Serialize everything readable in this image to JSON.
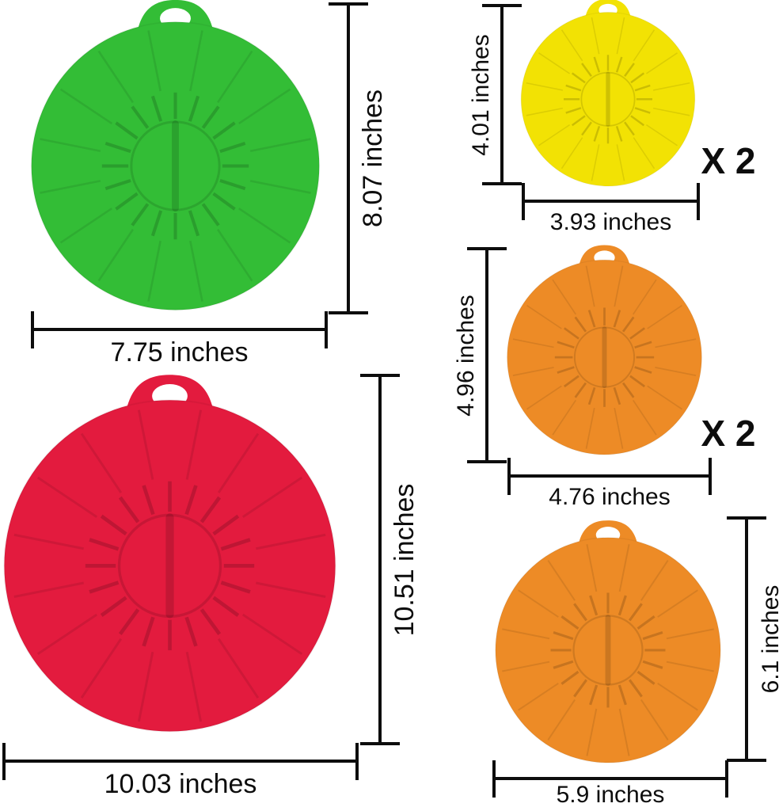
{
  "figure": {
    "background": "#ffffff",
    "line_color": "#0d0d0d",
    "text_color": "#0d0d0d",
    "unit": "inches"
  },
  "lids": [
    {
      "name": "green-large-lid",
      "color": "#33bd36",
      "height_label": "8.07 inches",
      "width_label": "7.75 inches",
      "quantity_label": ""
    },
    {
      "name": "yellow-small-lid",
      "color": "#f2e204",
      "height_label": "4.01 inches",
      "width_label": "3.93 inches",
      "quantity_label": "X 2"
    },
    {
      "name": "orange-medium-lid",
      "color": "#ed8b26",
      "height_label": "4.96 inches",
      "width_label": "4.76 inches",
      "quantity_label": "X 2"
    },
    {
      "name": "red-extra-large-lid",
      "color": "#e31b3e",
      "height_label": "10.51 inches",
      "width_label": "10.03 inches",
      "quantity_label": ""
    },
    {
      "name": "orange-large-lid",
      "color": "#ed8b26",
      "height_label": "6.1 inches",
      "width_label": "5.9 inches",
      "quantity_label": ""
    }
  ]
}
